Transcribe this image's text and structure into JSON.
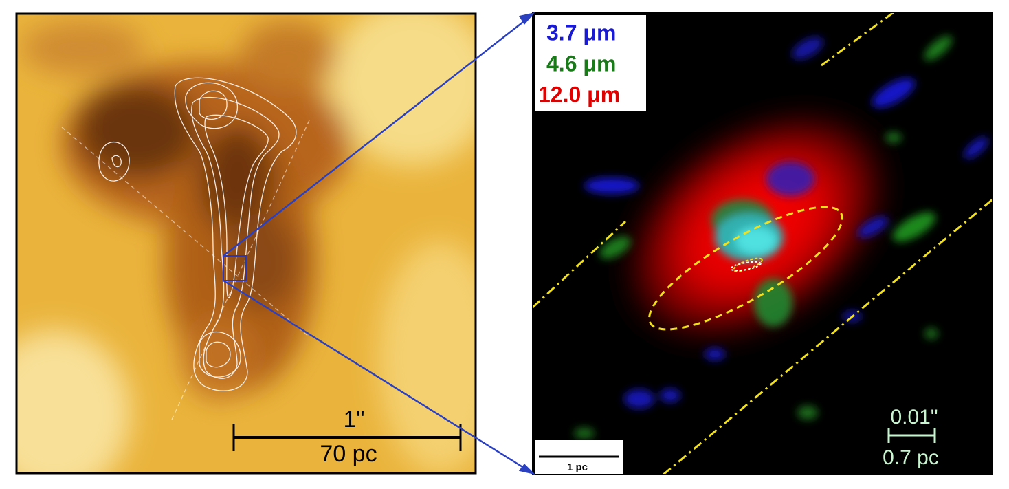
{
  "left_panel": {
    "scale_bar": {
      "angular": "1\"",
      "physical": "70 pc"
    }
  },
  "right_panel": {
    "legend": [
      "3.7 μm",
      "4.6 μm",
      "12.0 μm"
    ],
    "scale_bar": {
      "physical": "1 pc"
    },
    "inset_scale": {
      "angular": "0.01\"",
      "physical": "0.7 pc"
    }
  }
}
